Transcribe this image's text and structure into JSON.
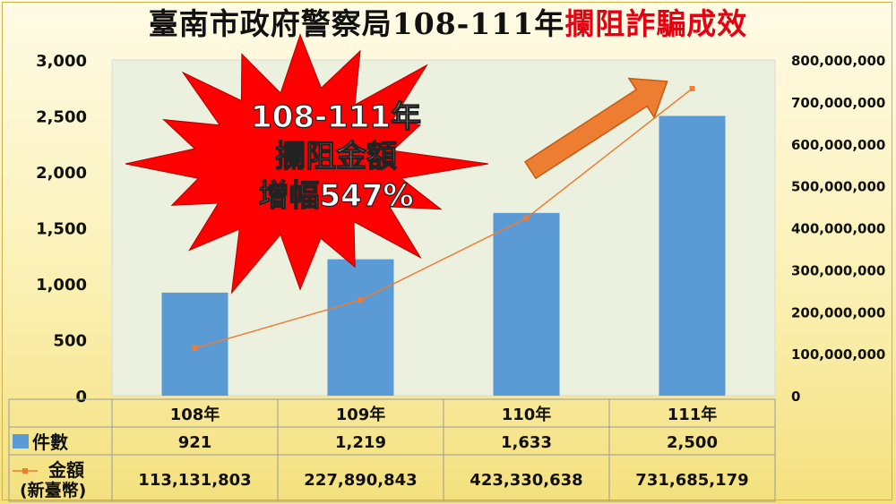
{
  "title_main": "臺南市政府警察局108-111年",
  "title_highlight": "攔阻詐騙成效",
  "callout": [
    "108-111年",
    "攔阻金額",
    "增幅547%"
  ],
  "table": {
    "count_label": "件數",
    "amount_label": "金額",
    "amount_unit": "(新臺幣)",
    "count_values": [
      "921",
      "1,219",
      "1,633",
      "2,500"
    ],
    "amount_values": [
      "113,131,803",
      "227,890,843",
      "423,330,638",
      "731,685,179"
    ]
  },
  "colors": {
    "bar": "#5b9bd5",
    "line": "#ed7d31",
    "plot_bg": "#ebf1de",
    "title_highlight": "#e60012",
    "callout_fill": "#ff0000",
    "arrow": "#ed7d31"
  },
  "chart_data": {
    "type": "bar",
    "title": "臺南市政府警察局108-111年攔阻詐騙成效",
    "categories": [
      "108年",
      "109年",
      "110年",
      "111年"
    ],
    "series": [
      {
        "name": "件數",
        "type": "bar",
        "axis": "left",
        "values": [
          921,
          1219,
          1633,
          2500
        ]
      },
      {
        "name": "金額",
        "type": "line",
        "axis": "right",
        "values": [
          113131803,
          227890843,
          423330638,
          731685179
        ]
      }
    ],
    "ylim": [
      0,
      3000
    ],
    "yticks": [
      "0",
      "500",
      "1,000",
      "1,500",
      "2,000",
      "2,500",
      "3,000"
    ],
    "y2lim": [
      0,
      800000000
    ],
    "y2ticks": [
      "0",
      "100,000,000",
      "200,000,000",
      "300,000,000",
      "400,000,000",
      "500,000,000",
      "600,000,000",
      "700,000,000",
      "800,000,000"
    ],
    "grid": false,
    "legend": "data-table"
  }
}
